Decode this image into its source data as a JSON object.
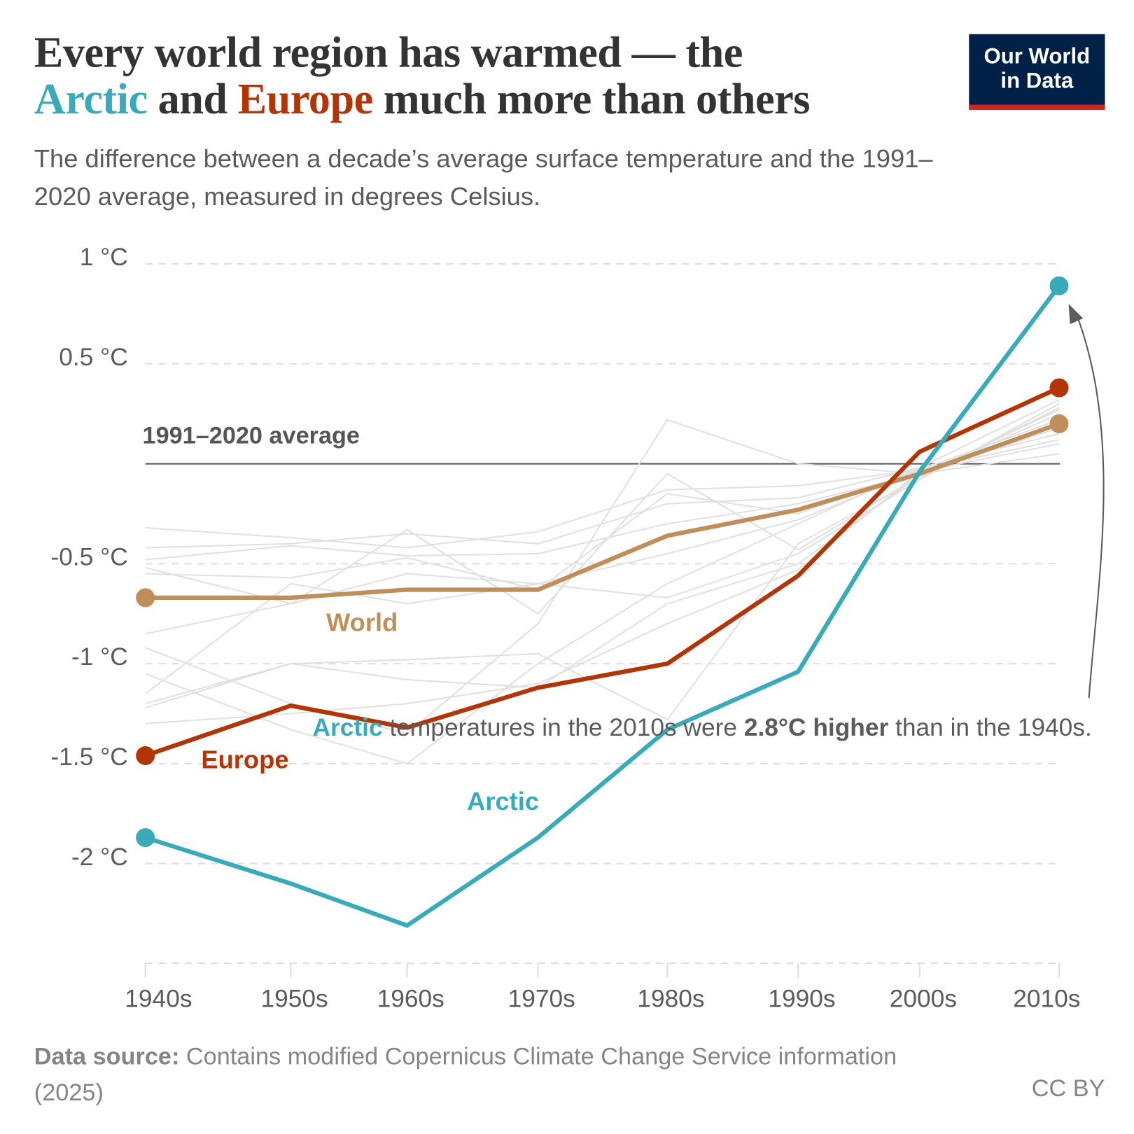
{
  "title": {
    "part1": "Every world region has warmed — the",
    "arctic": "Arctic",
    "and": " and ",
    "europe": "Europe",
    "part2": " much more than others"
  },
  "subtitle": "The difference between a decade’s average surface temperature and the 1991–2020 average, measured in degrees Celsius.",
  "logo": {
    "line1": "Our World",
    "line2": "in Data"
  },
  "annotation": {
    "arctic": "Arctic",
    "text1": " temperatures in the 2010s were ",
    "bold1": "2.8°C higher",
    "text2": " than in the 1940s."
  },
  "baseline_label": "1991–2020 average",
  "source": {
    "label": "Data source:",
    "text": " Contains modified Copernicus Climate Change Service information (2025)"
  },
  "license": "CC BY",
  "colors": {
    "arctic": "#38aaba",
    "europe": "#b13507",
    "world": "#be8e5b",
    "other": "#e2e0df"
  },
  "chart_data": {
    "type": "line",
    "categories": [
      "1940s",
      "1950s",
      "1960s",
      "1970s",
      "1980s",
      "1990s",
      "2000s",
      "2010s"
    ],
    "ylim": [
      -2.5,
      1
    ],
    "yticks": [
      {
        "v": 1,
        "label": "1 °C"
      },
      {
        "v": 0.5,
        "label": "0.5 °C"
      },
      {
        "v": -0.5,
        "label": "-0.5 °C"
      },
      {
        "v": -1,
        "label": "-1 °C"
      },
      {
        "v": -1.5,
        "label": "-1.5 °C"
      },
      {
        "v": -2,
        "label": "-2 °C"
      }
    ],
    "grid": true,
    "series": [
      {
        "name": "World",
        "color": "#be8e5b",
        "values": [
          -0.67,
          -0.67,
          -0.63,
          -0.63,
          -0.36,
          -0.23,
          -0.05,
          0.2
        ]
      },
      {
        "name": "Europe",
        "color": "#b13507",
        "values": [
          -1.46,
          -1.21,
          -1.32,
          -1.12,
          -1.0,
          -0.56,
          0.06,
          0.38
        ]
      },
      {
        "name": "Arctic",
        "color": "#38aaba",
        "values": [
          -1.87,
          -2.1,
          -2.31,
          -1.87,
          -1.33,
          -1.04,
          -0.04,
          0.89
        ]
      }
    ],
    "other_series": [
      [
        -0.32,
        -0.37,
        -0.42,
        -0.34,
        -0.13,
        -0.11,
        -0.03,
        0.12
      ],
      [
        -0.42,
        -0.4,
        -0.35,
        -0.4,
        -0.2,
        -0.17,
        -0.02,
        0.15
      ],
      [
        -0.48,
        -0.41,
        -0.46,
        -0.45,
        -0.3,
        -0.2,
        -0.05,
        0.18
      ],
      [
        -0.55,
        -0.57,
        -0.47,
        -0.63,
        -0.15,
        -0.25,
        -0.03,
        0.22
      ],
      [
        -0.52,
        -0.7,
        -0.33,
        -0.75,
        -0.05,
        -0.43,
        -0.06,
        0.25
      ],
      [
        -0.85,
        -0.7,
        -0.55,
        -0.6,
        -0.45,
        -0.28,
        -0.04,
        0.1
      ],
      [
        -1.15,
        -0.6,
        -0.7,
        -0.6,
        -0.67,
        -0.45,
        -0.08,
        0.3
      ],
      [
        -1.2,
        -1.0,
        -0.98,
        -0.95,
        -1.28,
        -0.4,
        -0.07,
        0.28
      ],
      [
        -0.92,
        -1.2,
        -1.35,
        -0.8,
        0.22,
        0.0,
        -0.05,
        0.05
      ],
      [
        -1.3,
        -1.25,
        -1.2,
        -1.1,
        -0.8,
        -0.53,
        -0.04,
        0.2
      ],
      [
        -1.22,
        -1.0,
        -1.08,
        -1.12,
        -0.7,
        -0.5,
        -0.06,
        0.27
      ],
      [
        -1.05,
        -1.33,
        -1.5,
        -1.0,
        -0.6,
        -0.3,
        -0.02,
        0.32
      ]
    ]
  }
}
